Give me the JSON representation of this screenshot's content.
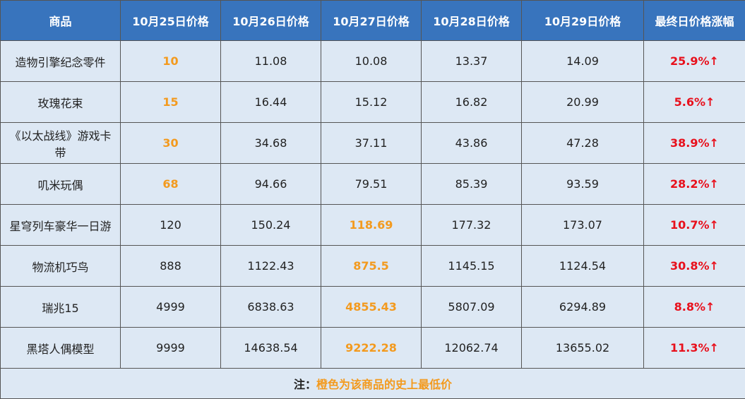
{
  "table": {
    "header": [
      "商品",
      "10月25日价格",
      "10月26日价格",
      "10月27日价格",
      "10月28日价格",
      "10月29日价格",
      "最终日价格涨幅"
    ],
    "rows": [
      [
        "造物引擎纪念零件",
        "10",
        "11.08",
        "10.08",
        "13.37",
        "14.09",
        "25.9%↑"
      ],
      [
        "玫瑰花束",
        "15",
        "16.44",
        "15.12",
        "16.82",
        "20.99",
        "5.6%↑"
      ],
      [
        "《以太战线》游戏卡带",
        "30",
        "34.68",
        "37.11",
        "43.86",
        "47.28",
        "38.9%↑"
      ],
      [
        "叽米玩偶",
        "68",
        "94.66",
        "79.51",
        "85.39",
        "93.59",
        "28.2%↑"
      ],
      [
        "星穹列车豪华一日游",
        "120",
        "150.24",
        "118.69",
        "177.32",
        "173.07",
        "10.7%↑"
      ],
      [
        "物流机巧鸟",
        "888",
        "1122.43",
        "875.5",
        "1145.15",
        "1124.54",
        "30.8%↑"
      ],
      [
        "瑞兆15",
        "4999",
        "6838.63",
        "4855.43",
        "5807.09",
        "6294.89",
        "8.8%↑"
      ],
      [
        "黑塔人偶模型",
        "9999",
        "14638.54",
        "9222.28",
        "12062.74",
        "13655.02",
        "11.3%↑"
      ]
    ],
    "note": {
      "label": "注：",
      "text": "橙色为该商品的史上最低价"
    }
  }
}
